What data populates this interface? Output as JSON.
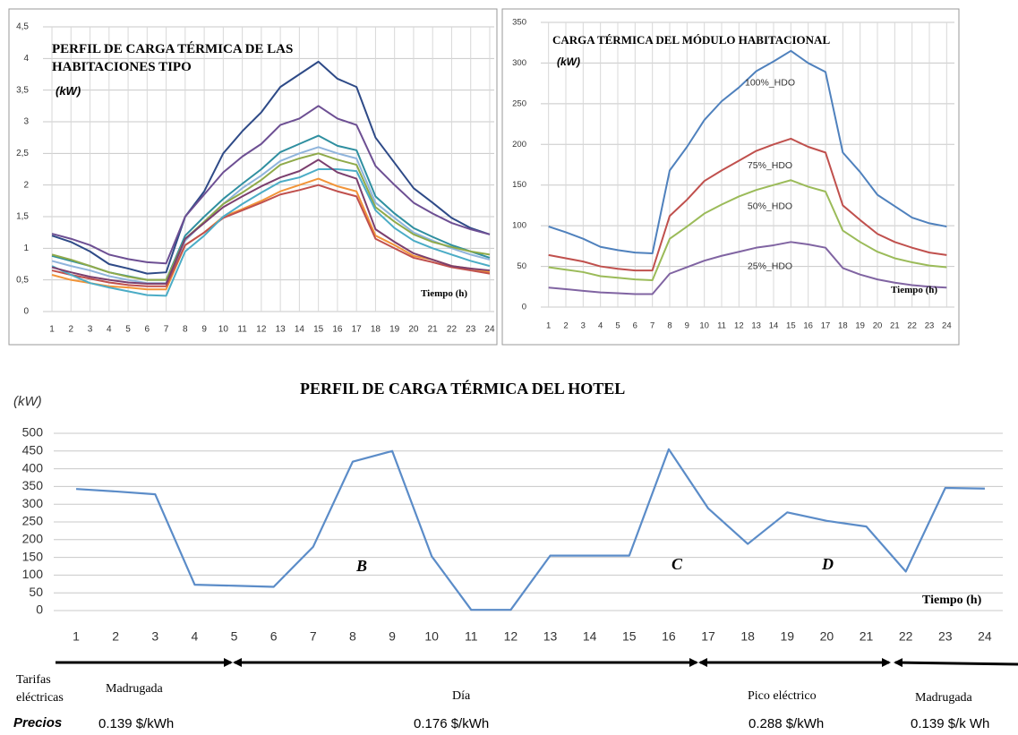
{
  "chart_data": [
    {
      "type": "line",
      "title": "PERFIL DE CARGA TÉRMICA DE LAS HABITACIONES TIPO",
      "y_label": "(kW)",
      "x_label": "Tiempo (h)",
      "categories": [
        1,
        2,
        3,
        4,
        5,
        6,
        7,
        8,
        9,
        10,
        11,
        12,
        13,
        14,
        15,
        16,
        17,
        18,
        19,
        20,
        21,
        22,
        23,
        24
      ],
      "ylim": [
        0,
        4.5
      ],
      "yticks": [
        0,
        {
          "value": 0.5,
          "label": "0,5"
        },
        1,
        {
          "value": 1.5,
          "label": "1,5"
        },
        2,
        {
          "value": 2.5,
          "label": "2,5"
        },
        3,
        {
          "value": 3.5,
          "label": "3,5"
        },
        4,
        {
          "value": 4.5,
          "label": "4,5"
        }
      ],
      "grid": true,
      "xgrid": true,
      "series": [
        {
          "color": "#2e4a87",
          "values": [
            1.2,
            1.1,
            0.95,
            0.75,
            0.68,
            0.6,
            0.62,
            1.5,
            1.9,
            2.5,
            2.85,
            3.15,
            3.55,
            3.75,
            3.95,
            3.68,
            3.55,
            2.75,
            2.35,
            1.95,
            1.72,
            1.48,
            1.32,
            1.22
          ]
        },
        {
          "color": "#6d4f93",
          "values": [
            1.23,
            1.15,
            1.05,
            0.9,
            0.83,
            0.78,
            0.76,
            1.5,
            1.85,
            2.2,
            2.45,
            2.65,
            2.95,
            3.05,
            3.25,
            3.05,
            2.95,
            2.3,
            2.0,
            1.72,
            1.55,
            1.4,
            1.3,
            1.22
          ]
        },
        {
          "color": "#2f8fa0",
          "values": [
            0.88,
            0.8,
            0.72,
            0.62,
            0.56,
            0.5,
            0.5,
            1.2,
            1.5,
            1.78,
            2.02,
            2.25,
            2.52,
            2.65,
            2.78,
            2.62,
            2.55,
            1.82,
            1.55,
            1.32,
            1.18,
            1.05,
            0.95,
            0.85
          ]
        },
        {
          "color": "#8fb4dc",
          "values": [
            0.8,
            0.72,
            0.65,
            0.56,
            0.5,
            0.45,
            0.45,
            1.12,
            1.42,
            1.7,
            1.95,
            2.15,
            2.38,
            2.5,
            2.6,
            2.5,
            2.42,
            1.72,
            1.48,
            1.25,
            1.12,
            1.0,
            0.9,
            0.82
          ]
        },
        {
          "color": "#8faa4a",
          "values": [
            0.9,
            0.82,
            0.72,
            0.62,
            0.55,
            0.5,
            0.5,
            1.15,
            1.42,
            1.7,
            1.88,
            2.08,
            2.32,
            2.42,
            2.5,
            2.4,
            2.32,
            1.65,
            1.42,
            1.22,
            1.1,
            1.02,
            0.95,
            0.9
          ]
        },
        {
          "color": "#f29438",
          "values": [
            0.58,
            0.5,
            0.45,
            0.4,
            0.38,
            0.35,
            0.35,
            1.05,
            1.25,
            1.5,
            1.62,
            1.75,
            1.9,
            2.0,
            2.1,
            1.98,
            1.9,
            1.2,
            1.05,
            0.88,
            0.82,
            0.72,
            0.68,
            0.62
          ]
        },
        {
          "color": "#c0504d",
          "values": [
            0.65,
            0.58,
            0.52,
            0.46,
            0.42,
            0.4,
            0.4,
            1.05,
            1.25,
            1.48,
            1.6,
            1.72,
            1.85,
            1.92,
            2.0,
            1.9,
            1.82,
            1.15,
            1.0,
            0.85,
            0.78,
            0.7,
            0.65,
            0.6
          ]
        },
        {
          "color": "#4bacc6",
          "values": [
            0.72,
            0.58,
            0.45,
            0.38,
            0.32,
            0.26,
            0.25,
            0.95,
            1.2,
            1.5,
            1.7,
            1.88,
            2.05,
            2.12,
            2.25,
            2.25,
            2.22,
            1.6,
            1.32,
            1.12,
            1.0,
            0.9,
            0.8,
            0.72
          ]
        },
        {
          "color": "#7b3f6e",
          "values": [
            0.7,
            0.62,
            0.55,
            0.5,
            0.46,
            0.44,
            0.44,
            1.15,
            1.4,
            1.65,
            1.82,
            1.98,
            2.12,
            2.22,
            2.4,
            2.2,
            2.1,
            1.3,
            1.1,
            0.92,
            0.82,
            0.72,
            0.68,
            0.65
          ]
        }
      ]
    },
    {
      "type": "line",
      "title": "CARGA TÉRMICA DEL MÓDULO HABITACIONAL",
      "y_label": "(kW)",
      "x_label": "Tiempo (h)",
      "categories": [
        1,
        2,
        3,
        4,
        5,
        6,
        7,
        8,
        9,
        10,
        11,
        12,
        13,
        14,
        15,
        16,
        17,
        18,
        19,
        20,
        21,
        22,
        23,
        24
      ],
      "ylim": [
        0,
        350
      ],
      "yticks": [
        0,
        50,
        100,
        150,
        200,
        250,
        300,
        350
      ],
      "grid": true,
      "xgrid": true,
      "inline_labels": true,
      "series": [
        {
          "name": "100%_HDO",
          "color": "#4f81bd",
          "values": [
            99,
            92,
            84,
            74,
            70,
            67,
            66,
            168,
            197,
            230,
            253,
            270,
            290,
            302,
            315,
            300,
            289,
            190,
            166,
            138,
            124,
            110,
            103,
            99
          ]
        },
        {
          "name": "75%_HDO",
          "color": "#c0504d",
          "values": [
            64,
            60,
            56,
            50,
            47,
            45,
            45,
            112,
            132,
            155,
            168,
            180,
            192,
            200,
            207,
            197,
            190,
            125,
            107,
            90,
            80,
            73,
            67,
            64
          ]
        },
        {
          "name": "50%_HDO",
          "color": "#9bbb59",
          "values": [
            49,
            46,
            43,
            38,
            36,
            34,
            33,
            84,
            99,
            115,
            126,
            136,
            144,
            150,
            156,
            148,
            142,
            94,
            80,
            68,
            60,
            55,
            51,
            49
          ]
        },
        {
          "name": "25%_HDO",
          "color": "#8064a2",
          "values": [
            24,
            22,
            20,
            18,
            17,
            16,
            16,
            41,
            49,
            57,
            63,
            68,
            73,
            76,
            80,
            77,
            73,
            48,
            40,
            34,
            30,
            27,
            25,
            24
          ]
        }
      ]
    },
    {
      "type": "line",
      "title": "PERFIL DE CARGA TÉRMICA DEL HOTEL",
      "y_label": "(kW)",
      "x_label": "Tiempo (h)",
      "categories": [
        1,
        2,
        3,
        4,
        5,
        6,
        7,
        8,
        9,
        10,
        11,
        12,
        13,
        14,
        15,
        16,
        17,
        18,
        19,
        20,
        21,
        22,
        23,
        24
      ],
      "ylim": [
        0,
        500
      ],
      "yticks": [
        0,
        50,
        100,
        150,
        200,
        250,
        300,
        350,
        400,
        450,
        500
      ],
      "grid": true,
      "xgrid": false,
      "annotations": [
        "B",
        "C",
        "D"
      ],
      "series": [
        {
          "color": "#5b8cc8",
          "values": [
            343,
            336,
            328,
            73,
            70,
            67,
            180,
            420,
            450,
            153,
            2,
            2,
            155,
            155,
            155,
            455,
            288,
            188,
            277,
            253,
            237,
            110,
            346,
            344
          ]
        }
      ]
    }
  ],
  "tariffs": {
    "label": "Tarifas eléctricas",
    "prices_label": "Precios",
    "periods": [
      {
        "name": "Madrugada",
        "price": "0.139 $/kWh"
      },
      {
        "name": "Día",
        "price": "0.176 $/kWh"
      },
      {
        "name": "Pico eléctrico",
        "price": "0.288 $/kWh"
      },
      {
        "name": "Madrugada",
        "price": "0.139 $/k Wh"
      }
    ]
  }
}
